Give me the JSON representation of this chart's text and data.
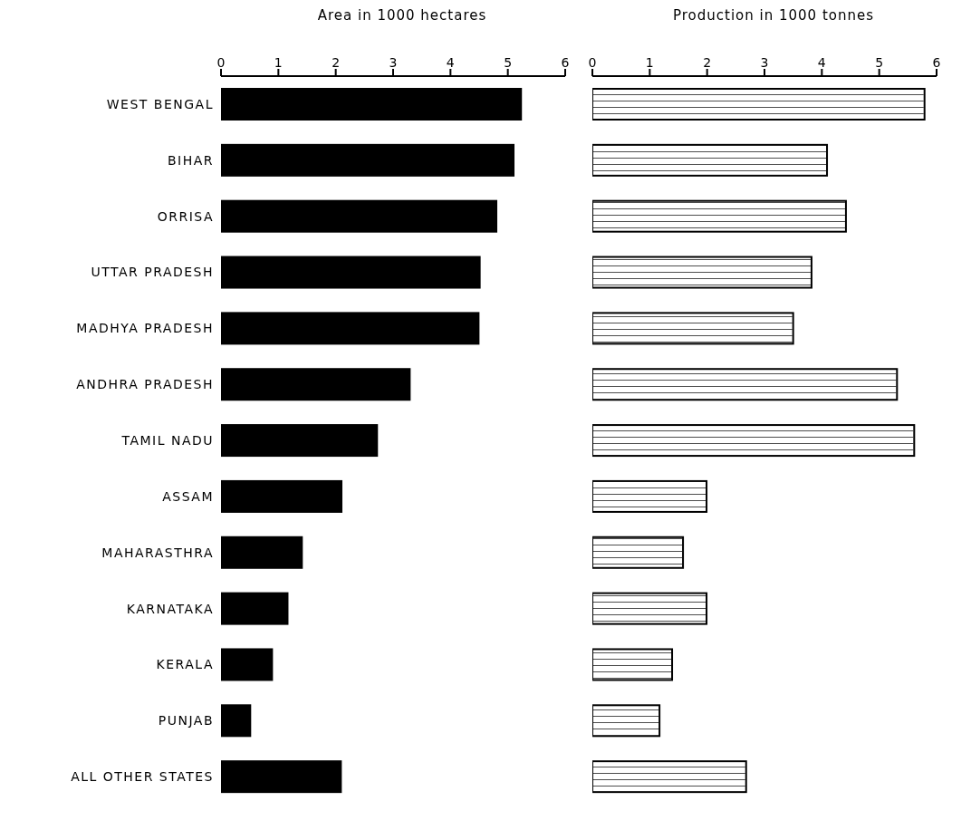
{
  "chart_data": [
    {
      "type": "bar",
      "orientation": "horizontal",
      "xlabel": "Area in 1000 hectares",
      "categories": [
        "WEST BENGAL",
        "BIHAR",
        "ORRISA",
        "UTTAR PRADESH",
        "MADHYA PRADESH",
        "ANDHRA PRADESH",
        "TAMIL NADU",
        "ASSAM",
        "MAHARASTHRA",
        "KARNATAKA",
        "KERALA",
        "PUNJAB",
        "ALL OTHER STATES"
      ],
      "values": [
        5.23,
        5.1,
        4.8,
        4.51,
        4.49,
        3.29,
        2.72,
        2.1,
        1.41,
        1.16,
        0.89,
        0.51,
        2.09
      ],
      "color": "#000000",
      "xlim": [
        0,
        6
      ],
      "xticks": [
        0,
        1,
        2,
        3,
        4,
        5,
        6
      ],
      "grid": false,
      "legend": false
    },
    {
      "type": "bar",
      "orientation": "horizontal",
      "xlabel": "Production in 1000 tonnes",
      "categories": [
        null,
        null,
        null,
        null,
        null,
        null,
        null,
        null,
        null,
        null,
        null,
        null,
        null
      ],
      "values": [
        5.79,
        4.09,
        4.42,
        3.82,
        3.5,
        5.31,
        5.61,
        1.99,
        1.58,
        1.99,
        1.39,
        1.17,
        2.68
      ],
      "color": "#ffffff",
      "xlim": [
        0,
        6
      ],
      "xticks": [
        0,
        1,
        2,
        3,
        4,
        5,
        6
      ],
      "tick_labels": "x",
      "grid": false,
      "legend": false
    }
  ]
}
